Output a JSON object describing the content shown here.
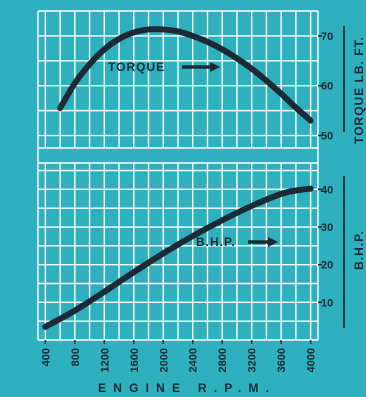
{
  "chart_data": [
    {
      "type": "line",
      "ylabel": "TORQUE LB. FT.",
      "ylim": [
        47.5,
        75
      ],
      "yticks": [
        "50",
        "60",
        "70"
      ],
      "series": [
        {
          "name": "TORQUE",
          "x": [
            600,
            800,
            1000,
            1200,
            1400,
            1600,
            1800,
            2000,
            2200,
            2400,
            2600,
            2800,
            3000,
            3200,
            3400,
            3600,
            3800,
            4000
          ],
          "values": [
            55.5,
            60.5,
            64.3,
            67.3,
            69.4,
            70.7,
            71.3,
            71.3,
            70.9,
            70.0,
            68.8,
            67.3,
            65.5,
            63.4,
            61.0,
            58.4,
            55.6,
            53.0
          ]
        }
      ]
    },
    {
      "type": "line",
      "xlabel": "ENGINE R.P.M.",
      "ylabel": "B.H.P.",
      "xticks": [
        "400",
        "800",
        "1200",
        "1600",
        "2000",
        "2400",
        "2800",
        "3200",
        "3600",
        "4000"
      ],
      "ylim": [
        0,
        47
      ],
      "yticks": [
        "10",
        "20",
        "30",
        "40"
      ],
      "series": [
        {
          "name": "B.H.P.",
          "x": [
            400,
            800,
            1200,
            1600,
            2000,
            2400,
            2800,
            3200,
            3600,
            3800,
            4000
          ],
          "values": [
            3.5,
            7.8,
            12.8,
            18.0,
            23.0,
            27.6,
            31.8,
            35.6,
            38.8,
            39.7,
            40.2
          ]
        }
      ]
    }
  ]
}
